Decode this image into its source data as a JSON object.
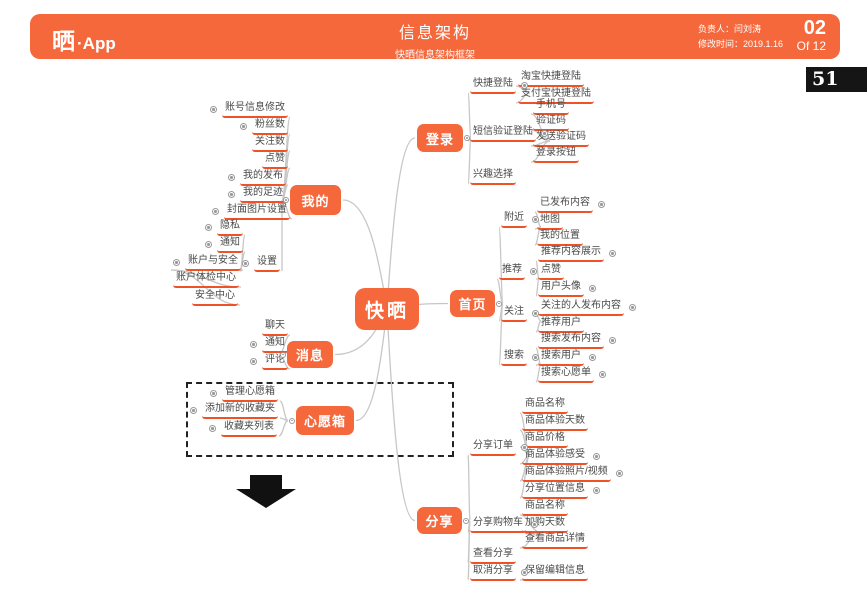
{
  "header": {
    "logo_char": "晒",
    "logo_suffix": "·App",
    "title": "信息架构",
    "subtitle": "快晒信息架构框架",
    "owner_label": "负责人：",
    "owner": "闫刘涛",
    "modified_label": "修改时间：",
    "modified": "2019.1.16",
    "page_num": "02",
    "page_total": "Of 12",
    "page_badge": "51"
  },
  "colors": {
    "accent": "#F4683C",
    "underline": "#EE5226",
    "connector": "#C7C7C7",
    "text": "#4A4A4A",
    "marker": "#999999",
    "badge_bg": "#151515",
    "arrow": "#111111",
    "dashed_border": "#222222"
  },
  "mindmap": {
    "center": {
      "id": "center",
      "label": "快晒"
    },
    "branches": [
      {
        "id": "b-login",
        "label": "登录",
        "side": "r",
        "children": [
          {
            "id": "login-quick",
            "label": "快捷登陆",
            "marker": "r",
            "children": [
              {
                "id": "quick-taobao",
                "label": "淘宝快捷登陆"
              },
              {
                "id": "quick-alipay",
                "label": "支付宝快捷登陆"
              }
            ]
          },
          {
            "id": "login-sms",
            "label": "短信验证登陆",
            "marker": "r",
            "children": [
              {
                "id": "sms-phone",
                "label": "手机号"
              },
              {
                "id": "sms-code",
                "label": "验证码"
              },
              {
                "id": "sms-send",
                "label": "发送验证码"
              },
              {
                "id": "sms-btn",
                "label": "登录按钮"
              }
            ]
          },
          {
            "id": "login-interest",
            "label": "兴趣选择"
          }
        ]
      },
      {
        "id": "b-home",
        "label": "首页",
        "side": "r",
        "children": [
          {
            "id": "home-nearby",
            "label": "附近",
            "marker": "r",
            "children": [
              {
                "id": "nearby-published",
                "label": "已发布内容",
                "marker": "r"
              },
              {
                "id": "nearby-map",
                "label": "地图"
              },
              {
                "id": "nearby-location",
                "label": "我的位置"
              }
            ]
          },
          {
            "id": "home-rec",
            "label": "推荐",
            "marker": "r",
            "children": [
              {
                "id": "rec-show",
                "label": "推荐内容展示",
                "marker": "r"
              },
              {
                "id": "rec-like",
                "label": "点赞"
              },
              {
                "id": "rec-avatar",
                "label": "用户头像",
                "marker": "r"
              }
            ]
          },
          {
            "id": "home-follow",
            "label": "关注",
            "marker": "r",
            "children": [
              {
                "id": "follow-content",
                "label": "关注的人发布内容",
                "marker": "r"
              },
              {
                "id": "follow-users",
                "label": "推荐用户"
              }
            ]
          },
          {
            "id": "home-search",
            "label": "搜索",
            "marker": "r",
            "children": [
              {
                "id": "search-content",
                "label": "搜索发布内容",
                "marker": "r"
              },
              {
                "id": "search-user",
                "label": "搜索用户",
                "marker": "r"
              },
              {
                "id": "search-wish",
                "label": "搜索心愿单",
                "marker": "r"
              }
            ]
          }
        ]
      },
      {
        "id": "b-share",
        "label": "分享",
        "side": "r",
        "children": [
          {
            "id": "share-order",
            "label": "分享订单",
            "marker": "r",
            "children": [
              {
                "id": "order-name",
                "label": "商品名称"
              },
              {
                "id": "order-days",
                "label": "商品体验天数"
              },
              {
                "id": "order-price",
                "label": "商品价格"
              },
              {
                "id": "order-feel",
                "label": "商品体验感受",
                "marker": "r"
              },
              {
                "id": "order-media",
                "label": "商品体验照片/视频",
                "marker": "r"
              },
              {
                "id": "order-loc",
                "label": "分享位置信息",
                "marker": "r"
              }
            ]
          },
          {
            "id": "share-cart",
            "label": "分享购物车",
            "marker": "r",
            "children": [
              {
                "id": "cart-name",
                "label": "商品名称"
              },
              {
                "id": "cart-days",
                "label": "加购天数"
              },
              {
                "id": "cart-detail",
                "label": "查看商品详情"
              }
            ]
          },
          {
            "id": "share-view",
            "label": "查看分享"
          },
          {
            "id": "share-cancel",
            "label": "取消分享",
            "marker": "r",
            "children": [
              {
                "id": "cancel-keep",
                "label": "保留编辑信息"
              }
            ]
          }
        ]
      },
      {
        "id": "b-mine",
        "label": "我的",
        "side": "l",
        "children": [
          {
            "id": "mine-account",
            "label": "账号信息修改",
            "marker": "l"
          },
          {
            "id": "mine-fans",
            "label": "粉丝数",
            "marker": "l"
          },
          {
            "id": "mine-follows",
            "label": "关注数"
          },
          {
            "id": "mine-likes",
            "label": "点赞"
          },
          {
            "id": "mine-pub",
            "label": "我的发布",
            "marker": "l"
          },
          {
            "id": "mine-track",
            "label": "我的足迹",
            "marker": "l"
          },
          {
            "id": "mine-cover",
            "label": "封面图片设置",
            "marker": "l"
          },
          {
            "id": "mine-settings",
            "label": "设置",
            "marker": "l",
            "children": [
              {
                "id": "set-privacy",
                "label": "隐私",
                "marker": "l"
              },
              {
                "id": "set-notify",
                "label": "通知",
                "marker": "l"
              },
              {
                "id": "set-security",
                "label": "账户与安全",
                "marker": "l",
                "children": [
                  {
                    "id": "sec-check",
                    "label": "账户体检中心"
                  },
                  {
                    "id": "sec-center",
                    "label": "安全中心"
                  }
                ]
              }
            ]
          }
        ]
      },
      {
        "id": "b-msg",
        "label": "消息",
        "side": "l",
        "children": [
          {
            "id": "msg-chat",
            "label": "聊天"
          },
          {
            "id": "msg-notify",
            "label": "通知",
            "marker": "l"
          },
          {
            "id": "msg-comment",
            "label": "评论",
            "marker": "l"
          }
        ]
      },
      {
        "id": "b-wish",
        "label": "心愿箱",
        "side": "l",
        "children": [
          {
            "id": "wish-manage",
            "label": "管理心愿箱",
            "marker": "l"
          },
          {
            "id": "wish-add",
            "label": "添加新的收藏夹",
            "marker": "l"
          },
          {
            "id": "wish-list",
            "label": "收藏夹列表",
            "marker": "l"
          }
        ]
      }
    ]
  }
}
